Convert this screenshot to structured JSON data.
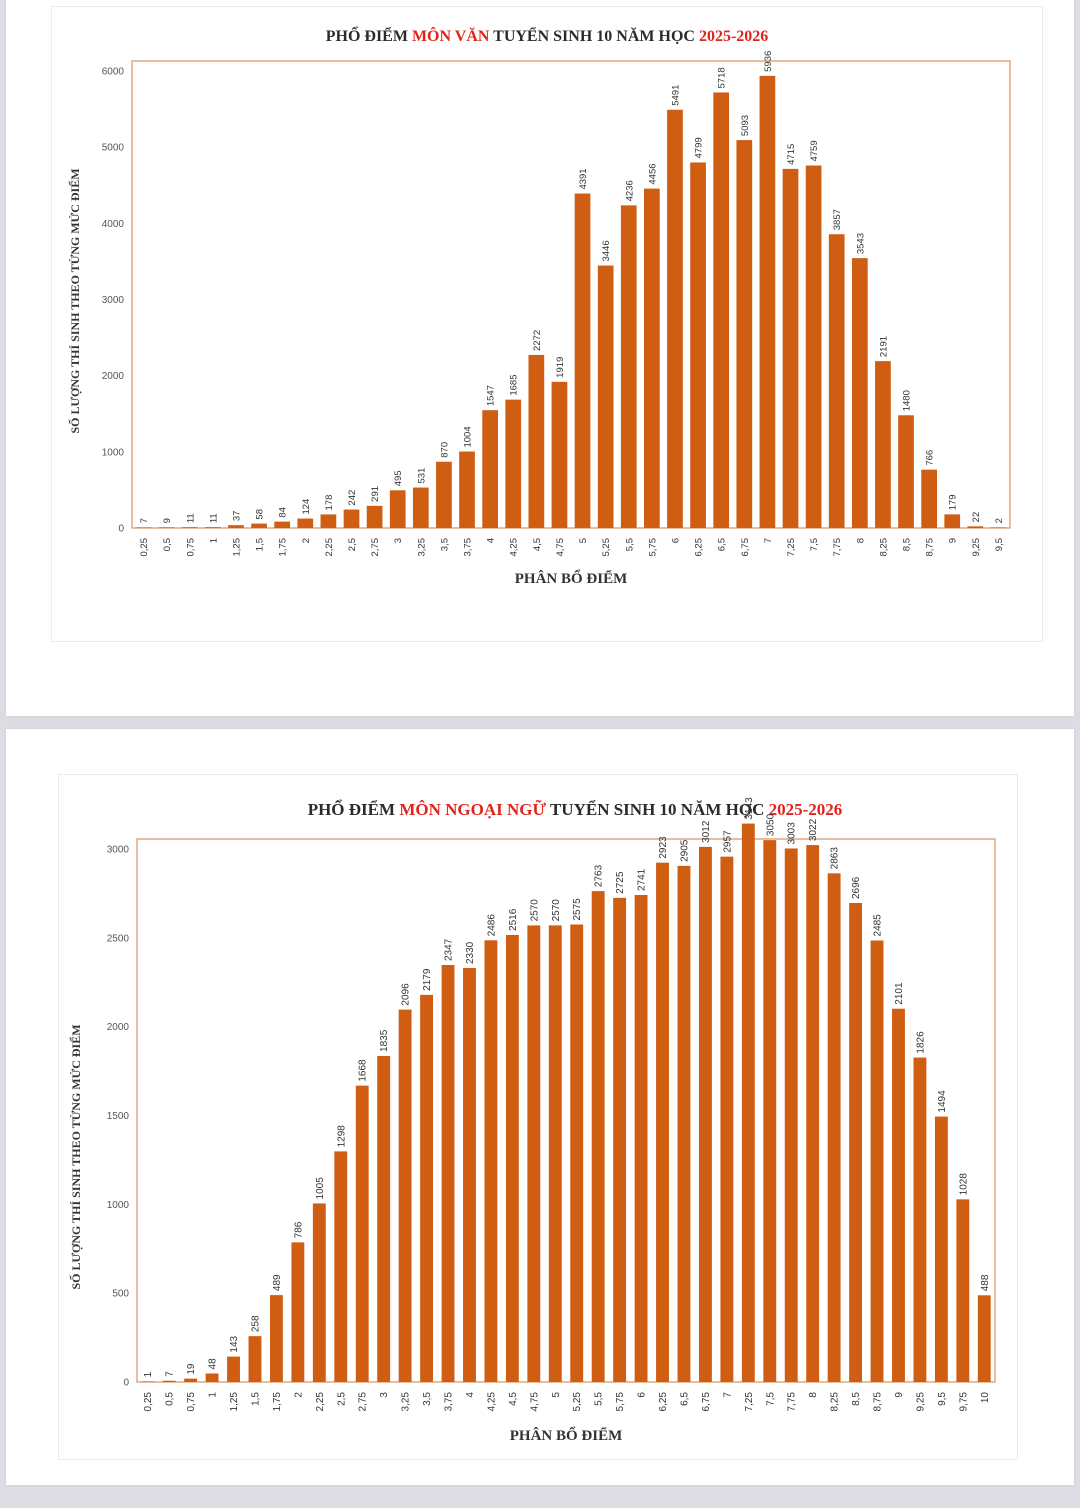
{
  "charts": [
    {
      "title_parts": [
        {
          "text": "PHỔ ĐIỂM ",
          "color": "#2b2b2b"
        },
        {
          "text": "MÔN VĂN",
          "color": "#e3231b"
        },
        {
          "text": " TUYỂN SINH 10 NĂM HỌC ",
          "color": "#2b2b2b"
        },
        {
          "text": "2025-2026",
          "color": "#e3231b"
        }
      ],
      "xlabel": "PHÂN BỔ ĐIỂM",
      "ylabel": "SỐ LƯỢNG THÍ SINH THEO TỪNG MỨC ĐIỂM"
    },
    {
      "title_parts": [
        {
          "text": "PHỔ ĐIỂM ",
          "color": "#2b2b2b"
        },
        {
          "text": "MÔN NGOẠI NGỮ",
          "color": "#e3231b"
        },
        {
          "text": " TUYỂN SINH 10 NĂM HỌC ",
          "color": "#2b2b2b"
        },
        {
          "text": "2025-2026",
          "color": "#e3231b"
        }
      ],
      "xlabel": "PHÂN BỔ ĐIỂM",
      "ylabel": "SỐ LƯỢNG THÍ SINH THEO TỪNG MỨC ĐIỂM"
    }
  ],
  "chart_data": [
    {
      "type": "bar",
      "title": "PHỔ ĐIỂM MÔN VĂN TUYỂN SINH 10 NĂM HỌC 2025-2026",
      "xlabel": "PHÂN BỔ ĐIỂM",
      "ylabel": "SỐ LƯỢNG THÍ SINH THEO TỪNG MỨC ĐIỂM",
      "categories": [
        "0,25",
        "0,5",
        "0,75",
        "1",
        "1,25",
        "1,5",
        "1,75",
        "2",
        "2,25",
        "2,5",
        "2,75",
        "3",
        "3,25",
        "3,5",
        "3,75",
        "4",
        "4,25",
        "4,5",
        "4,75",
        "5",
        "5,25",
        "5,5",
        "5,75",
        "6",
        "6,25",
        "6,5",
        "6,75",
        "7",
        "7,25",
        "7,5",
        "7,75",
        "8",
        "8,25",
        "8,5",
        "8,75",
        "9",
        "9,25",
        "9,5"
      ],
      "values": [
        7,
        9,
        11,
        11,
        37,
        58,
        84,
        124,
        178,
        242,
        291,
        495,
        531,
        870,
        1004,
        1547,
        1685,
        2272,
        1919,
        4391,
        3446,
        4236,
        4456,
        5491,
        4799,
        5718,
        5093,
        5936,
        4715,
        4759,
        3857,
        3543,
        2191,
        1480,
        766,
        179,
        22,
        2
      ],
      "ylim": [
        0,
        6000
      ],
      "yticks": [
        0,
        1000,
        2000,
        3000,
        4000,
        5000,
        6000
      ],
      "grid": false,
      "bar_color": "#cf5d12",
      "frame_color": "#d9935e"
    },
    {
      "type": "bar",
      "title": "PHỔ ĐIỂM MÔN NGOẠI NGỮ TUYỂN SINH 10 NĂM HỌC 2025-2026",
      "xlabel": "PHÂN BỔ ĐIỂM",
      "ylabel": "SỐ LƯỢNG THÍ SINH THEO TỪNG MỨC ĐIỂM",
      "categories": [
        "0,25",
        "0,5",
        "0,75",
        "1",
        "1,25",
        "1,5",
        "1,75",
        "2",
        "2,25",
        "2,5",
        "2,75",
        "3",
        "3,25",
        "3,5",
        "3,75",
        "4",
        "4,25",
        "4,5",
        "4,75",
        "5",
        "5,25",
        "5,5",
        "5,75",
        "6",
        "6,25",
        "6,5",
        "6,75",
        "7",
        "7,25",
        "7,5",
        "7,75",
        "8",
        "8,25",
        "8,5",
        "8,75",
        "9",
        "9,25",
        "9,5",
        "9,75",
        "10"
      ],
      "values": [
        1,
        7,
        19,
        48,
        143,
        258,
        489,
        786,
        1005,
        1298,
        1668,
        1835,
        2096,
        2179,
        2347,
        2330,
        2486,
        2516,
        2570,
        2570,
        2575,
        2763,
        2725,
        2741,
        2923,
        2905,
        3012,
        2957,
        3143,
        3050,
        3003,
        3022,
        2863,
        2696,
        2485,
        2101,
        1826,
        1494,
        1028,
        488
      ],
      "ylim": [
        0,
        3000
      ],
      "yticks": [
        0,
        500,
        1000,
        1500,
        2000,
        2500,
        3000
      ],
      "grid": false,
      "bar_color": "#cf5d12",
      "frame_color": "#d9935e"
    }
  ]
}
